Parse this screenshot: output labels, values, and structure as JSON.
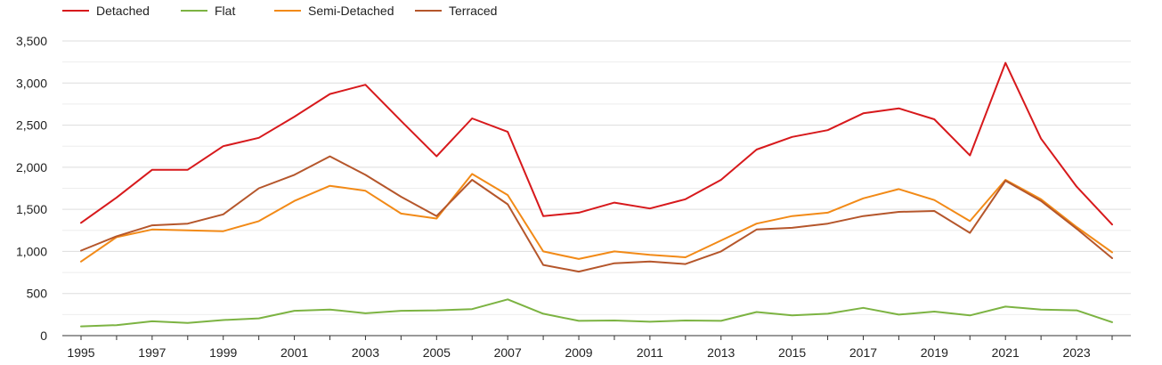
{
  "chart_data": {
    "type": "line",
    "title": "",
    "xlabel": "",
    "ylabel": "",
    "x": [
      1995,
      1996,
      1997,
      1998,
      1999,
      2000,
      2001,
      2002,
      2003,
      2004,
      2005,
      2006,
      2007,
      2008,
      2009,
      2010,
      2011,
      2012,
      2013,
      2014,
      2015,
      2016,
      2017,
      2018,
      2019,
      2020,
      2021,
      2022,
      2023,
      2024
    ],
    "xlim": [
      1995,
      2024
    ],
    "ylim": [
      0,
      3500
    ],
    "x_tick_labels": [
      "1995",
      "1997",
      "1999",
      "2001",
      "2003",
      "2005",
      "2007",
      "2009",
      "2011",
      "2013",
      "2015",
      "2017",
      "2019",
      "2021",
      "2023"
    ],
    "y_tick_labels": [
      "0",
      "500",
      "1,000",
      "1,500",
      "2,000",
      "2,500",
      "3,000",
      "3,500"
    ],
    "grid": true,
    "legend_position": "top-left",
    "series": [
      {
        "name": "Detached",
        "color": "#d7191c",
        "values": [
          1340,
          1640,
          1970,
          1970,
          2250,
          2350,
          2600,
          2870,
          2980,
          2550,
          2130,
          2580,
          2420,
          1420,
          1460,
          1580,
          1510,
          1620,
          1850,
          2210,
          2360,
          2440,
          2640,
          2700,
          2570,
          2140,
          3240,
          2340,
          1770,
          1320
        ]
      },
      {
        "name": "Flat",
        "color": "#7cb342",
        "values": [
          110,
          125,
          170,
          150,
          185,
          205,
          295,
          310,
          265,
          295,
          300,
          315,
          430,
          260,
          175,
          180,
          165,
          180,
          175,
          280,
          240,
          260,
          330,
          250,
          285,
          240,
          345,
          310,
          300,
          160
        ]
      },
      {
        "name": "Semi-Detached",
        "color": "#f28a17",
        "values": [
          880,
          1170,
          1260,
          1250,
          1240,
          1360,
          1600,
          1780,
          1720,
          1450,
          1390,
          1920,
          1670,
          1000,
          910,
          1000,
          960,
          930,
          1130,
          1330,
          1420,
          1460,
          1630,
          1740,
          1610,
          1360,
          1850,
          1620,
          1290,
          990
        ]
      },
      {
        "name": "Terraced",
        "color": "#b5562b",
        "values": [
          1010,
          1180,
          1310,
          1330,
          1440,
          1750,
          1910,
          2130,
          1910,
          1650,
          1420,
          1850,
          1560,
          840,
          760,
          860,
          880,
          850,
          1000,
          1260,
          1280,
          1330,
          1420,
          1470,
          1480,
          1220,
          1840,
          1600,
          1270,
          920
        ]
      }
    ]
  }
}
